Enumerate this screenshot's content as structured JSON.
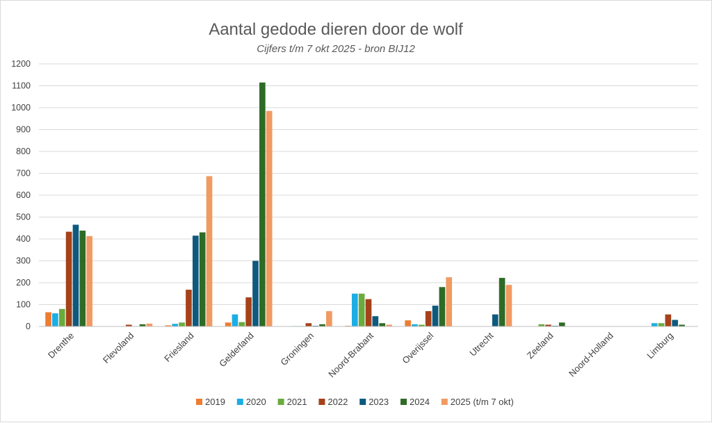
{
  "chart_data": {
    "type": "bar",
    "title": "Aantal gedode dieren door de wolf",
    "subtitle": "Cijfers t/m 7 okt 2025 - bron BIJ12",
    "xlabel": "",
    "ylabel": "",
    "ylim": [
      0,
      1200
    ],
    "yticks": [
      0,
      100,
      200,
      300,
      400,
      500,
      600,
      700,
      800,
      900,
      1000,
      1100,
      1200
    ],
    "grid": true,
    "legend_position": "bottom",
    "categories": [
      "Drenthe",
      "Flevoland",
      "Friesland",
      "Gelderland",
      "Groningen",
      "Noord-Brabant",
      "Overijssel",
      "Utrecht",
      "Zeeland",
      "Noord-Holland",
      "Limburg"
    ],
    "series": [
      {
        "name": "2019",
        "color": "#ED7D31",
        "values": [
          65,
          0,
          5,
          18,
          0,
          3,
          28,
          0,
          0,
          0,
          0
        ]
      },
      {
        "name": "2020",
        "color": "#1CADE4",
        "values": [
          60,
          0,
          12,
          55,
          2,
          150,
          10,
          0,
          0,
          0,
          15
        ]
      },
      {
        "name": "2021",
        "color": "#6AAB3E",
        "values": [
          80,
          0,
          18,
          20,
          2,
          150,
          8,
          0,
          10,
          0,
          15
        ]
      },
      {
        "name": "2022",
        "color": "#A5421A",
        "values": [
          433,
          8,
          168,
          133,
          15,
          125,
          70,
          0,
          8,
          0,
          55
        ]
      },
      {
        "name": "2023",
        "color": "#0E5A7E",
        "values": [
          465,
          0,
          415,
          300,
          3,
          47,
          95,
          55,
          3,
          0,
          30
        ]
      },
      {
        "name": "2024",
        "color": "#2E6B26",
        "values": [
          438,
          10,
          430,
          1115,
          10,
          15,
          180,
          222,
          18,
          0,
          8
        ]
      },
      {
        "name": "2025 (t/m 7 okt)",
        "color": "#F19A62",
        "values": [
          413,
          13,
          687,
          985,
          70,
          8,
          225,
          190,
          0,
          0,
          0
        ]
      }
    ]
  }
}
